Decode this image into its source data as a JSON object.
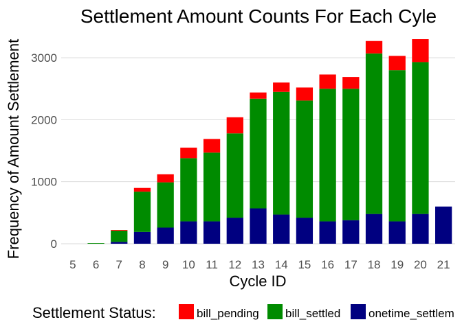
{
  "chart_data": {
    "type": "bar",
    "stacked": true,
    "title": "Settlement Amount Counts For Each Cyle",
    "xlabel": "Cycle ID",
    "ylabel": "Frequency of Amount Settlement",
    "categories": [
      "5",
      "6",
      "7",
      "8",
      "9",
      "10",
      "11",
      "12",
      "13",
      "14",
      "15",
      "16",
      "17",
      "18",
      "19",
      "20",
      "21"
    ],
    "ylim": [
      -100,
      3400
    ],
    "yticks": [
      0,
      1000,
      2000,
      3000
    ],
    "grid": "horizontal",
    "legend": {
      "title": "Settlement Status:",
      "position": "bottom",
      "visible_labels": [
        "bill_pending",
        "bill_settled",
        "onetime_settlem"
      ]
    },
    "series": [
      {
        "name": "onetime_settlement",
        "color": "#000080",
        "values": [
          0,
          0,
          30,
          190,
          260,
          360,
          360,
          420,
          570,
          470,
          420,
          360,
          380,
          480,
          360,
          480,
          600
        ]
      },
      {
        "name": "bill_settled",
        "color": "#008b00",
        "values": [
          0,
          10,
          180,
          650,
          730,
          1020,
          1110,
          1360,
          1770,
          1980,
          1890,
          2140,
          2120,
          2590,
          2440,
          2450,
          0
        ]
      },
      {
        "name": "bill_pending",
        "color": "#ff0000",
        "values": [
          0,
          0,
          10,
          60,
          130,
          170,
          220,
          260,
          100,
          150,
          210,
          230,
          190,
          200,
          230,
          370,
          0
        ]
      }
    ]
  }
}
